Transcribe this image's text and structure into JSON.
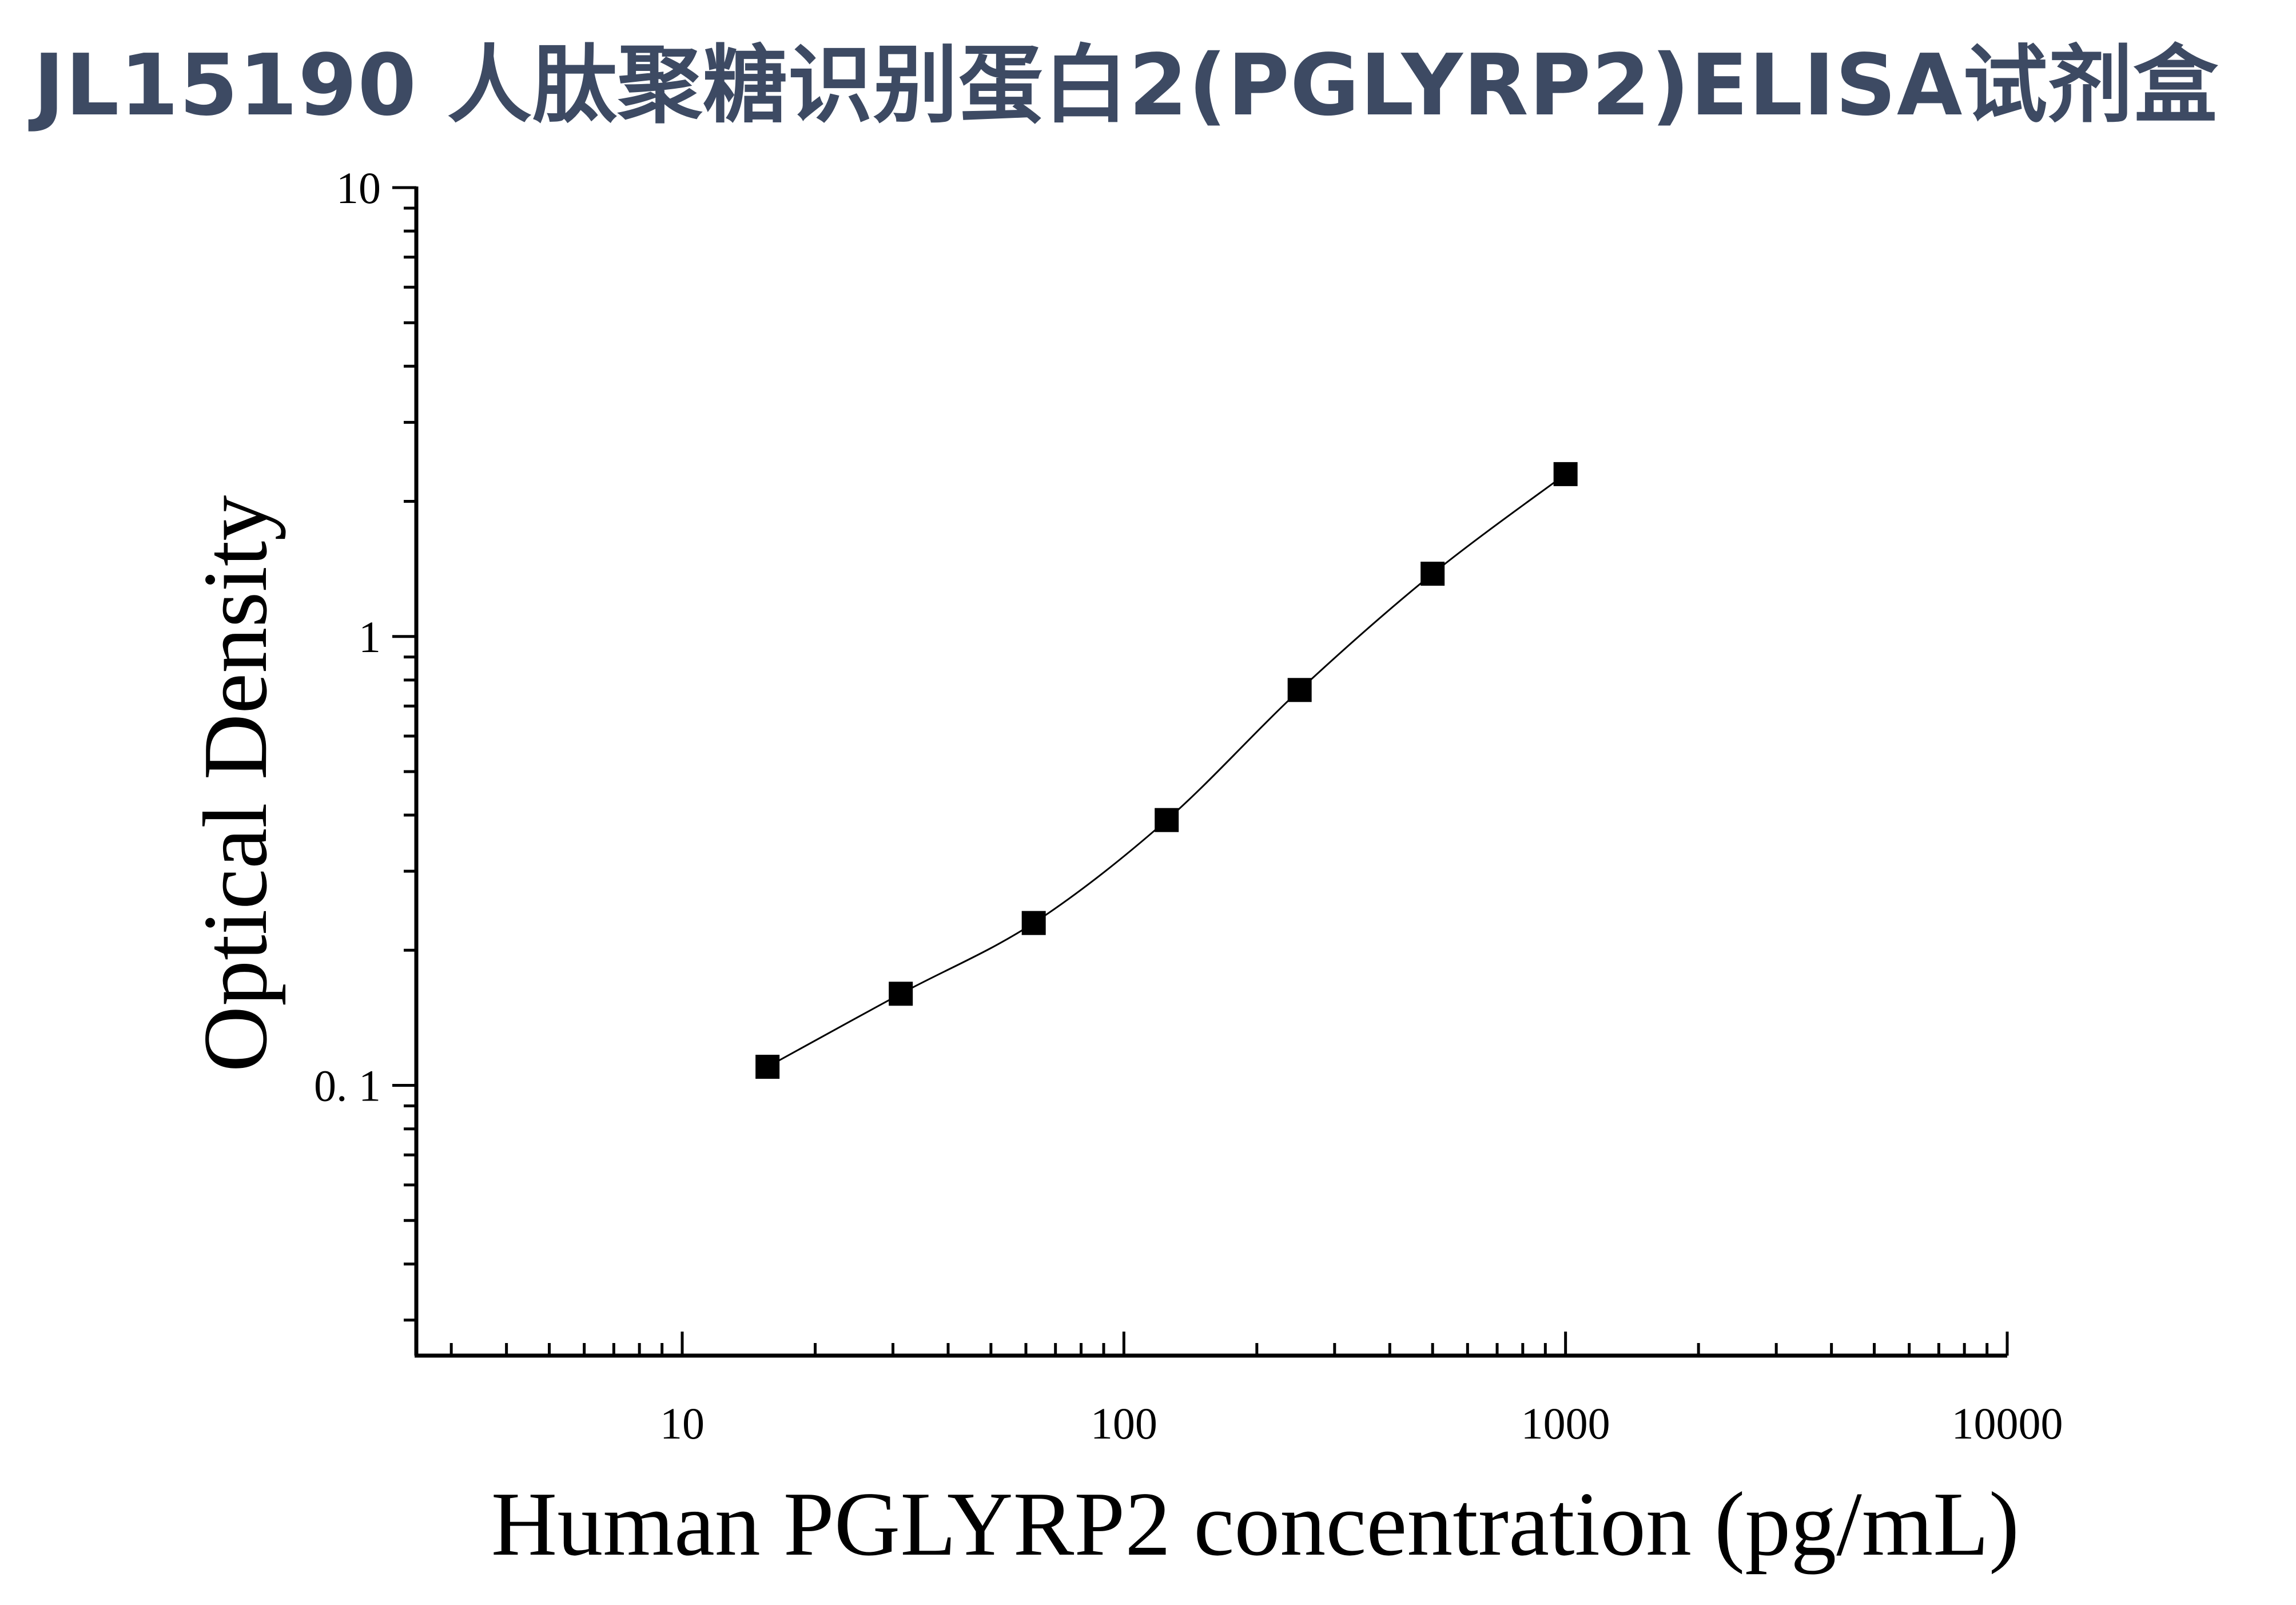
{
  "chart_data": {
    "type": "scatter",
    "title": "JL15190 人肽聚糖识别蛋白2(PGLYRP2)ELISA试剂盒",
    "xlabel": "Human PGLYRP2 concentration (pg/mL)",
    "ylabel": "Optical Density",
    "x_scale": "log",
    "y_scale": "log",
    "xlim": [
      2.5,
      10000
    ],
    "ylim": [
      0.025,
      10
    ],
    "x_ticks": [
      10,
      100,
      1000,
      10000
    ],
    "x_tick_labels": [
      "10",
      "100",
      "1000",
      "10000"
    ],
    "y_ticks": [
      0.1,
      1,
      10
    ],
    "y_tick_labels": [
      "0. 1",
      "1",
      "10"
    ],
    "grid": false,
    "marker": "square",
    "color": "#000000",
    "series": [
      {
        "x": [
          15.6,
          31.25,
          62.5,
          125,
          250,
          500,
          1000
        ],
        "y": [
          0.11,
          0.16,
          0.23,
          0.39,
          0.76,
          1.38,
          2.3
        ],
        "fit_curve": true
      }
    ]
  }
}
